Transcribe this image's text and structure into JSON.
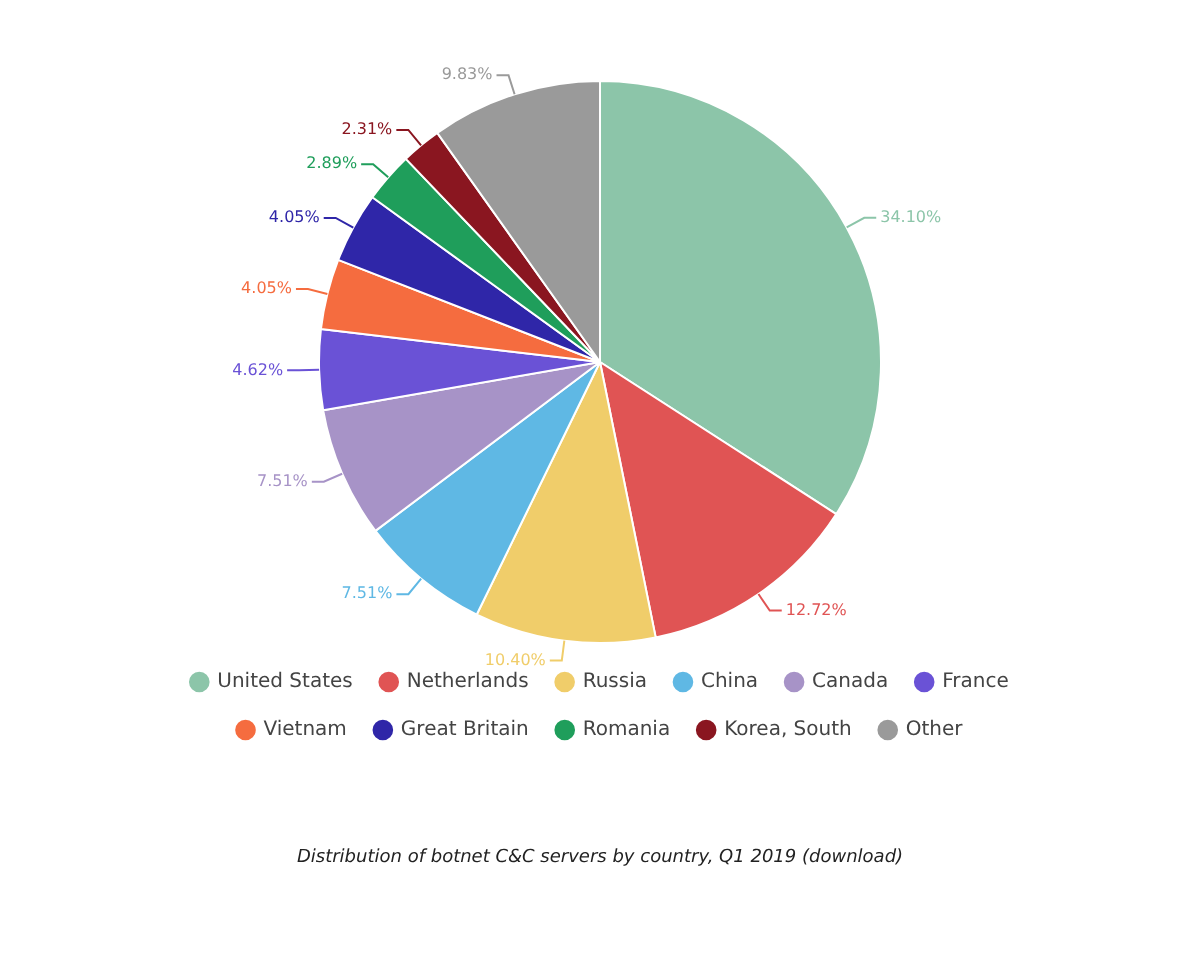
{
  "chart_data": {
    "type": "pie",
    "categories": [
      "United States",
      "Netherlands",
      "Russia",
      "China",
      "Canada",
      "France",
      "Vietnam",
      "Great Britain",
      "Romania",
      "Korea, South",
      "Other"
    ],
    "values": [
      34.1,
      12.72,
      10.4,
      7.51,
      7.51,
      4.62,
      4.05,
      4.05,
      2.89,
      2.31,
      9.83
    ],
    "colors": [
      "#8cc5a9",
      "#e05454",
      "#f0cd6a",
      "#5fb8e4",
      "#a793c7",
      "#6a52d6",
      "#f56c3f",
      "#2f26a8",
      "#1f9e5b",
      "#8a1620",
      "#9a9a9a"
    ],
    "value_labels": [
      "34.10%",
      "12.72%",
      "10.40%",
      "7.51%",
      "7.51%",
      "4.62%",
      "4.05%",
      "4.05%",
      "2.89%",
      "2.31%",
      "9.83%"
    ],
    "legend": "bottom",
    "annotations": [
      "Distribution of botnet C&C servers by country, Q1 2019 (download)"
    ]
  }
}
